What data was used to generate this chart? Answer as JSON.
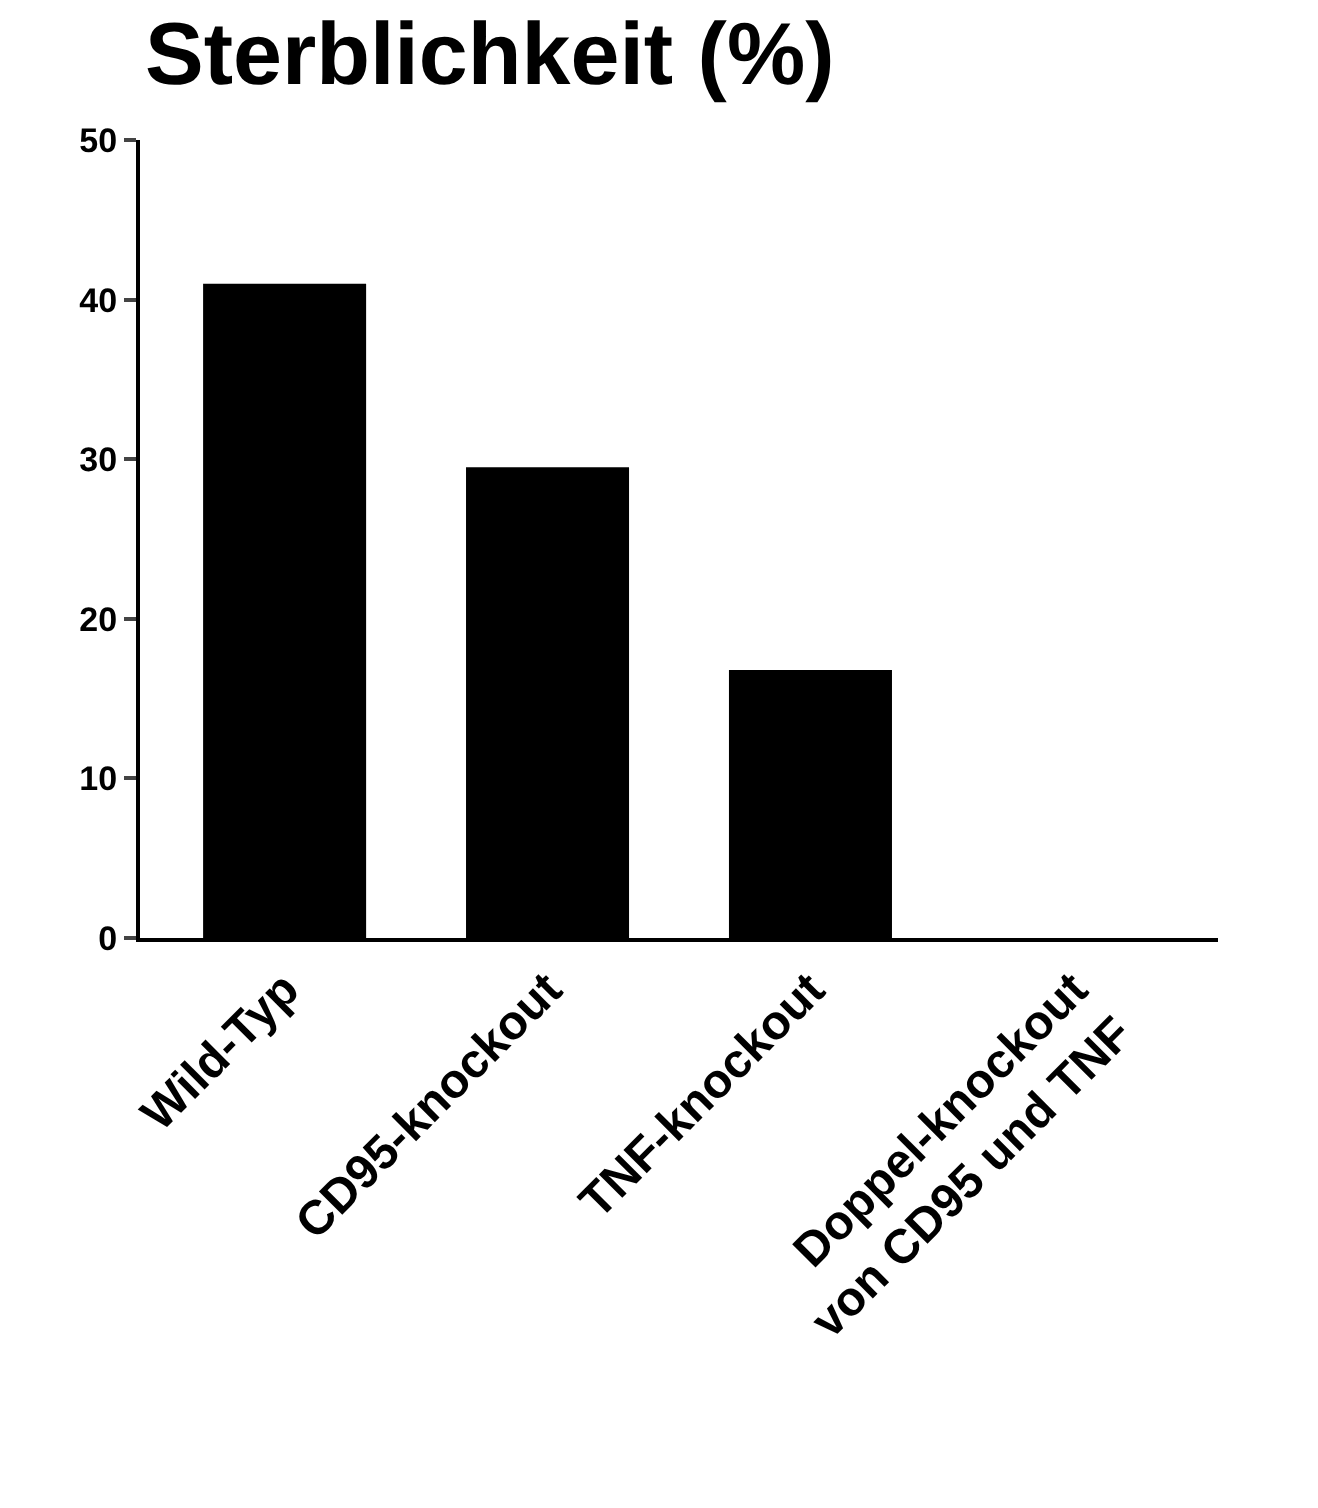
{
  "chart_data": {
    "type": "bar",
    "title": "Sterblichkeit (%)",
    "categories": [
      "Wild-Typ",
      "CD95-knockout",
      "TNF-knockout",
      "Doppel-knockout\nvon CD95 und TNF"
    ],
    "values": [
      41,
      29.5,
      16.8,
      0
    ],
    "color": "#000000",
    "ylim": [
      0,
      50
    ],
    "yticks": [
      0,
      10,
      20,
      30,
      40,
      50
    ],
    "grid": false
  }
}
